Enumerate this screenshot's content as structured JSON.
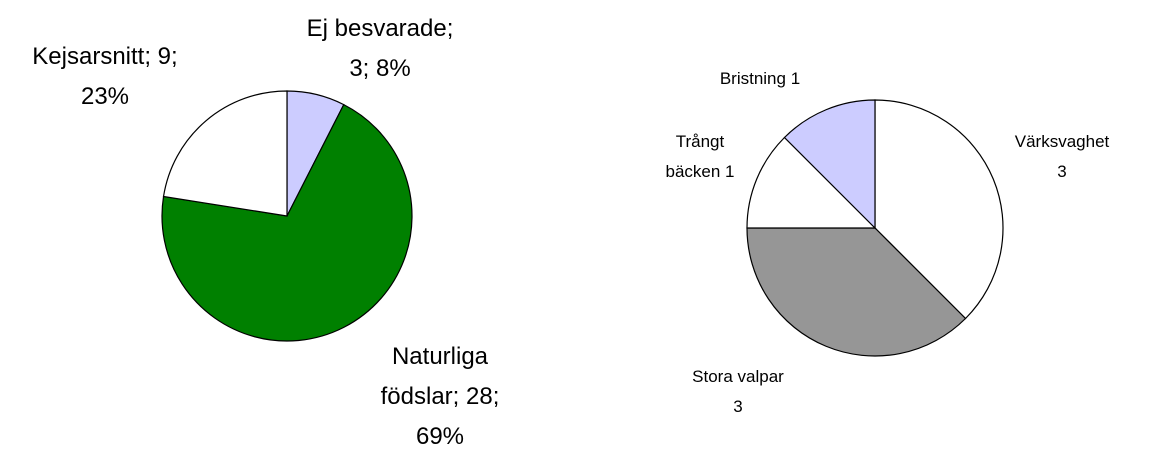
{
  "chart_data": [
    {
      "type": "pie",
      "values": [
        3,
        28,
        9
      ],
      "colors": [
        "#ccccff",
        "#008000",
        "#ffffff"
      ],
      "labels": [
        [
          "Ej besvarade;",
          "3; 8%"
        ],
        [
          "Naturliga",
          "födslar; 28;",
          "69%"
        ],
        [
          "Kejsarsnitt; 9;",
          "23%"
        ]
      ]
    },
    {
      "type": "pie",
      "values": [
        3,
        3,
        1,
        1
      ],
      "colors": [
        "#ffffff",
        "#969696",
        "#ffffff",
        "#ccccff"
      ],
      "labels": [
        [
          "Värksvaghet",
          "3"
        ],
        [
          "Stora valpar",
          "3"
        ],
        [
          "Trångt",
          "bäcken 1"
        ],
        [
          "Bristning 1"
        ]
      ]
    }
  ]
}
